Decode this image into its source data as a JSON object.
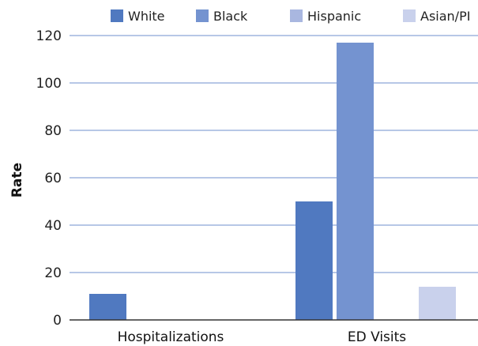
{
  "chart_data": {
    "type": "bar",
    "title": "",
    "xlabel": "",
    "ylabel": "Rate",
    "ylim": [
      0,
      120
    ],
    "yticks": [
      0,
      20,
      40,
      60,
      80,
      100,
      120
    ],
    "categories": [
      "Hospitalizations",
      "ED Visits"
    ],
    "series": [
      {
        "name": "White",
        "color": "#5079c0",
        "values": [
          11,
          50
        ]
      },
      {
        "name": "Black",
        "color": "#7493d0",
        "values": [
          0,
          117
        ]
      },
      {
        "name": "Hispanic",
        "color": "#a9b7e0",
        "values": [
          0,
          0
        ]
      },
      {
        "name": "Asian/PI",
        "color": "#c9d1ec",
        "values": [
          0,
          14
        ]
      }
    ],
    "grid": true,
    "legend_position": "top"
  }
}
